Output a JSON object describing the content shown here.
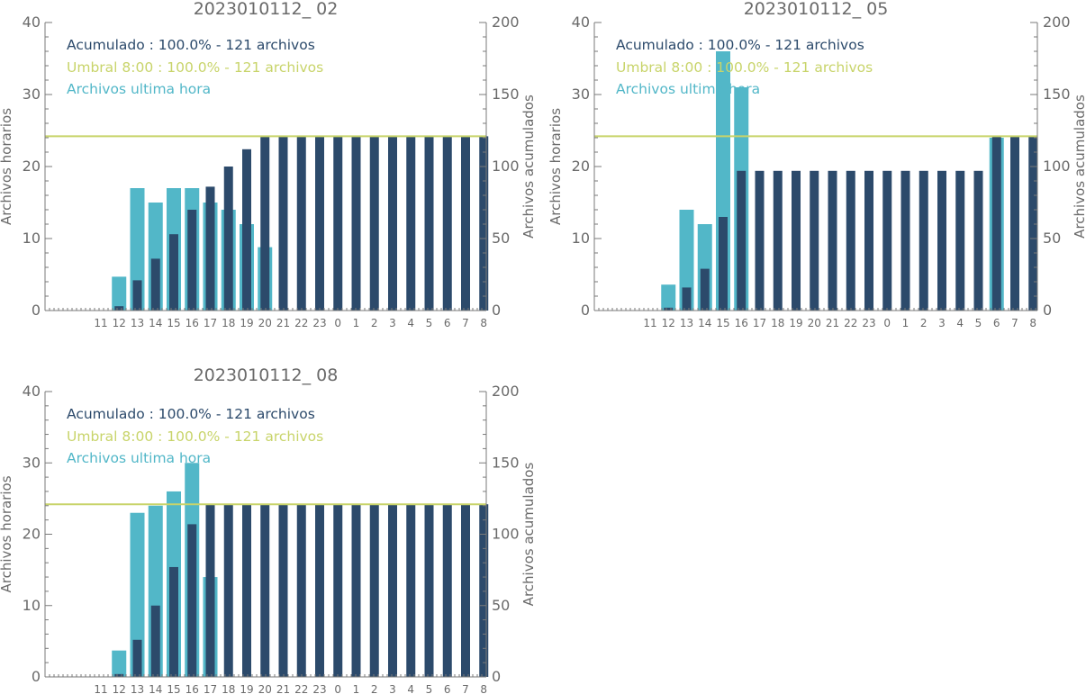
{
  "colors": {
    "hourly": "#52b7c8",
    "cumulative": "#2c4a6b",
    "threshold": "#c8d46a",
    "axes": "#7a7a7a",
    "text": "#6a6a6a"
  },
  "chart_data": [
    {
      "type": "bar",
      "title": "2023010112_ 02",
      "categories": [
        "11",
        "12",
        "13",
        "14",
        "15",
        "16",
        "17",
        "18",
        "19",
        "20",
        "21",
        "22",
        "23",
        "0",
        "1",
        "2",
        "3",
        "4",
        "5",
        "6",
        "7",
        "8"
      ],
      "series": [
        {
          "name": "Archivos ultima hora",
          "axis": "left",
          "values": [
            0,
            4.7,
            17,
            15,
            17,
            17,
            15,
            14,
            12,
            8.8,
            null,
            null,
            null,
            null,
            null,
            null,
            null,
            null,
            null,
            null,
            null,
            null
          ]
        },
        {
          "name": "Acumulado : 100.0% - 121 archivos",
          "axis": "right",
          "values": [
            0,
            3,
            21,
            36,
            53,
            70,
            86,
            100,
            112,
            121,
            121,
            121,
            121,
            121,
            121,
            121,
            121,
            121,
            121,
            121,
            121,
            121
          ]
        }
      ],
      "threshold": {
        "name": "Umbral 8:00 : 100.0% - 121 archivos",
        "axis": "right",
        "value": 121
      },
      "ylabel_left": "Archivos horarios",
      "ylabel_right": "Archivos acumulados",
      "ylim_left": [
        0,
        40
      ],
      "ylim_right": [
        0,
        200
      ],
      "yticks_left": [
        "0",
        "10",
        "20",
        "30",
        "40"
      ],
      "yticks_right": [
        "0",
        "50",
        "100",
        "150",
        "200"
      ],
      "legend_position": "top-left"
    },
    {
      "type": "bar",
      "title": "2023010112_ 05",
      "categories": [
        "11",
        "12",
        "13",
        "14",
        "15",
        "16",
        "17",
        "18",
        "19",
        "20",
        "21",
        "22",
        "23",
        "0",
        "1",
        "2",
        "3",
        "4",
        "5",
        "6",
        "7",
        "8"
      ],
      "series": [
        {
          "name": "Archivos ultima hora",
          "axis": "left",
          "values": [
            0,
            3.6,
            14,
            12,
            36,
            31,
            null,
            null,
            null,
            null,
            null,
            null,
            null,
            null,
            null,
            null,
            null,
            null,
            null,
            24,
            null,
            null
          ]
        },
        {
          "name": "Acumulado : 100.0% - 121 archivos",
          "axis": "right",
          "values": [
            0,
            2,
            16,
            29,
            65,
            97,
            97,
            97,
            97,
            97,
            97,
            97,
            97,
            97,
            97,
            97,
            97,
            97,
            97,
            121,
            121,
            121
          ]
        }
      ],
      "threshold": {
        "name": "Umbral 8:00 : 100.0% - 121 archivos",
        "axis": "right",
        "value": 121
      },
      "ylabel_left": "Archivos horarios",
      "ylabel_right": "Archivos acumulados",
      "ylim_left": [
        0,
        40
      ],
      "ylim_right": [
        0,
        200
      ],
      "yticks_left": [
        "0",
        "10",
        "20",
        "30",
        "40"
      ],
      "yticks_right": [
        "0",
        "50",
        "100",
        "150",
        "200"
      ],
      "legend_position": "top-left"
    },
    {
      "type": "bar",
      "title": "2023010112_ 08",
      "categories": [
        "11",
        "12",
        "13",
        "14",
        "15",
        "16",
        "17",
        "18",
        "19",
        "20",
        "21",
        "22",
        "23",
        "0",
        "1",
        "2",
        "3",
        "4",
        "5",
        "6",
        "7",
        "8"
      ],
      "series": [
        {
          "name": "Archivos ultima hora",
          "axis": "left",
          "values": [
            0,
            3.7,
            23,
            24,
            26,
            30,
            14,
            null,
            null,
            null,
            null,
            null,
            null,
            null,
            null,
            null,
            null,
            null,
            null,
            null,
            null,
            null
          ]
        },
        {
          "name": "Acumulado : 100.0% - 121 archivos",
          "axis": "right",
          "values": [
            0,
            2,
            26,
            50,
            77,
            107,
            121,
            121,
            121,
            121,
            121,
            121,
            121,
            121,
            121,
            121,
            121,
            121,
            121,
            121,
            121,
            121
          ]
        }
      ],
      "threshold": {
        "name": "Umbral 8:00 : 100.0% - 121 archivos",
        "axis": "right",
        "value": 121
      },
      "ylabel_left": "Archivos horarios",
      "ylabel_right": "Archivos acumulados",
      "ylim_left": [
        0,
        40
      ],
      "ylim_right": [
        0,
        200
      ],
      "yticks_left": [
        "0",
        "10",
        "20",
        "30",
        "40"
      ],
      "yticks_right": [
        "0",
        "50",
        "100",
        "150",
        "200"
      ],
      "legend_position": "top-left"
    }
  ]
}
